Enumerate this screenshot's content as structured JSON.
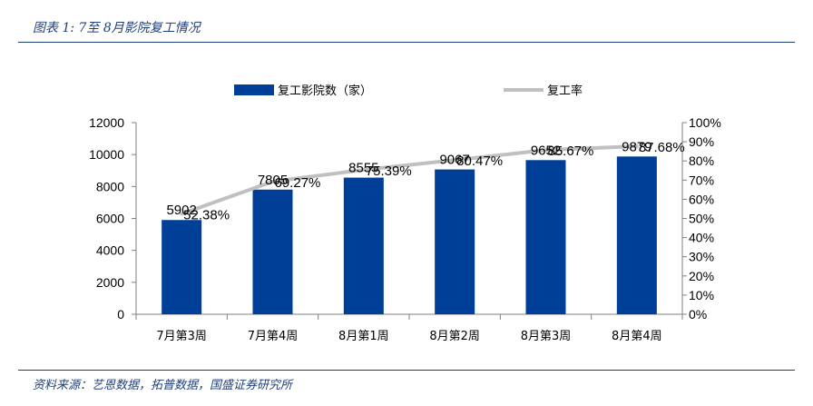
{
  "title": "图表 1:  7至 8月影院复工情况",
  "source": "资料来源：艺恩数据，拓普数据，国盛证券研究所",
  "colors": {
    "bar": "#003f98",
    "line": "#c0c0c0",
    "accent": "#1f3f7a"
  },
  "chart_data": {
    "type": "bar",
    "categories": [
      "7月第3周",
      "7月第4周",
      "8月第1周",
      "8月第2周",
      "8月第3周",
      "8月第4周"
    ],
    "series": [
      {
        "name": "复工影院数（家）",
        "type": "bar",
        "axis": "left",
        "values": [
          5902,
          7805,
          8555,
          9067,
          9652,
          9879
        ]
      },
      {
        "name": "复工率",
        "type": "line",
        "axis": "right",
        "values": [
          52.38,
          69.27,
          75.39,
          80.47,
          85.67,
          87.68
        ],
        "labels": [
          "52.38%",
          "69.27%",
          "75.39%",
          "80.47%",
          "85.67%",
          "87.68%"
        ]
      }
    ],
    "left_axis": {
      "ylim": [
        0,
        12000
      ],
      "ticks": [
        "0",
        "2000",
        "4000",
        "6000",
        "8000",
        "10000",
        "12000"
      ]
    },
    "right_axis": {
      "ylim": [
        0,
        100
      ],
      "ticks": [
        "0%",
        "10%",
        "20%",
        "30%",
        "40%",
        "50%",
        "60%",
        "70%",
        "80%",
        "90%",
        "100%"
      ]
    },
    "legend_position": "top",
    "grid": false
  }
}
